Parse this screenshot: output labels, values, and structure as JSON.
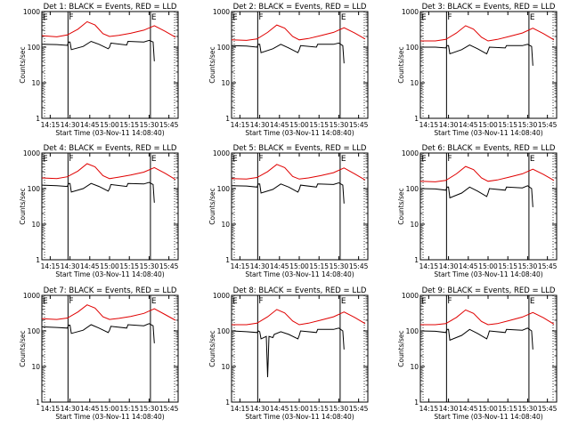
{
  "legend": {
    "title_suffix": "BLACK = Events, RED = LLD",
    "colors": {
      "events": "#000000",
      "lld": "#e00000"
    }
  },
  "axes": {
    "ylabel": "Counts/sec",
    "xlabel": "Start Time (03-Nov-11 14:08:40)",
    "x_ticks": [
      "14:15",
      "14:30",
      "14:45",
      "15:00",
      "15:15",
      "15:30",
      "15:45"
    ],
    "y_ticks": [
      "1",
      "10",
      "100",
      "1000"
    ]
  },
  "flags": {
    "left": "E",
    "mid": "F",
    "right": "E"
  },
  "chart_data": [
    {
      "type": "line",
      "title": "Det 1:",
      "xlim": [
        "14:08:40",
        "15:52:00"
      ],
      "ylim": [
        1,
        1000
      ],
      "yscale": "log",
      "series": [
        {
          "name": "Events",
          "x": [
            "14:08:40",
            "14:20",
            "14:28",
            "14:29",
            "14:30",
            "14:31",
            "14:40",
            "14:46",
            "14:52",
            "14:59",
            "15:00",
            "15:01",
            "15:13",
            "15:14",
            "15:26",
            "15:30",
            "15:33",
            "15:34"
          ],
          "values": [
            120,
            118,
            112,
            140,
            140,
            85,
            105,
            145,
            120,
            90,
            100,
            130,
            115,
            145,
            140,
            155,
            140,
            40
          ]
        },
        {
          "name": "LLD",
          "x": [
            "14:08:40",
            "14:20",
            "14:28",
            "14:36",
            "14:43",
            "14:49",
            "14:55",
            "15:00",
            "15:07",
            "15:16",
            "15:26",
            "15:34",
            "15:42",
            "15:50"
          ],
          "values": [
            210,
            195,
            220,
            320,
            520,
            420,
            240,
            200,
            215,
            245,
            300,
            400,
            280,
            190
          ]
        }
      ]
    },
    {
      "type": "line",
      "title": "Det 2:",
      "xlim": [
        "14:08:40",
        "15:52:00"
      ],
      "ylim": [
        1,
        1000
      ],
      "yscale": "log",
      "series": [
        {
          "name": "Events",
          "x": [
            "14:08:40",
            "14:20",
            "14:28",
            "14:29",
            "14:30",
            "14:31",
            "14:40",
            "14:46",
            "14:52",
            "14:59",
            "15:00",
            "15:01",
            "15:13",
            "15:14",
            "15:26",
            "15:30",
            "15:33",
            "15:34"
          ],
          "values": [
            110,
            108,
            100,
            120,
            120,
            70,
            90,
            120,
            95,
            70,
            85,
            110,
            100,
            120,
            120,
            130,
            110,
            35
          ]
        },
        {
          "name": "LLD",
          "x": [
            "14:08:40",
            "14:20",
            "14:28",
            "14:36",
            "14:43",
            "14:49",
            "14:55",
            "15:00",
            "15:07",
            "15:16",
            "15:26",
            "15:34",
            "15:42",
            "15:50"
          ],
          "values": [
            160,
            155,
            170,
            260,
            420,
            340,
            200,
            160,
            175,
            210,
            260,
            350,
            250,
            170
          ]
        }
      ]
    },
    {
      "type": "line",
      "title": "Det 3:",
      "xlim": [
        "14:08:40",
        "15:52:00"
      ],
      "ylim": [
        1,
        1000
      ],
      "yscale": "log",
      "series": [
        {
          "name": "Events",
          "x": [
            "14:08:40",
            "14:20",
            "14:28",
            "14:29",
            "14:30",
            "14:31",
            "14:40",
            "14:46",
            "14:52",
            "14:59",
            "15:00",
            "15:01",
            "15:13",
            "15:14",
            "15:26",
            "15:30",
            "15:33",
            "15:34"
          ],
          "values": [
            100,
            100,
            95,
            110,
            110,
            65,
            85,
            115,
            90,
            65,
            80,
            100,
            95,
            110,
            110,
            120,
            105,
            30
          ]
        },
        {
          "name": "LLD",
          "x": [
            "14:08:40",
            "14:20",
            "14:28",
            "14:36",
            "14:43",
            "14:49",
            "14:55",
            "15:00",
            "15:07",
            "15:16",
            "15:26",
            "15:34",
            "15:42",
            "15:50"
          ],
          "values": [
            150,
            150,
            165,
            250,
            400,
            320,
            190,
            150,
            165,
            200,
            250,
            340,
            240,
            160
          ]
        }
      ]
    },
    {
      "type": "line",
      "title": "Det 4:",
      "xlim": [
        "14:08:40",
        "15:52:00"
      ],
      "ylim": [
        1,
        1000
      ],
      "yscale": "log",
      "series": [
        {
          "name": "Events",
          "x": [
            "14:08:40",
            "14:20",
            "14:28",
            "14:29",
            "14:30",
            "14:31",
            "14:40",
            "14:46",
            "14:52",
            "14:59",
            "15:00",
            "15:01",
            "15:13",
            "15:14",
            "15:26",
            "15:30",
            "15:33",
            "15:34"
          ],
          "values": [
            125,
            120,
            115,
            140,
            140,
            80,
            100,
            140,
            115,
            85,
            100,
            130,
            115,
            140,
            135,
            150,
            130,
            40
          ]
        },
        {
          "name": "LLD",
          "x": [
            "14:08:40",
            "14:20",
            "14:28",
            "14:36",
            "14:43",
            "14:49",
            "14:55",
            "15:00",
            "15:07",
            "15:16",
            "15:26",
            "15:34",
            "15:42",
            "15:50"
          ],
          "values": [
            200,
            190,
            215,
            310,
            500,
            410,
            230,
            190,
            210,
            240,
            290,
            390,
            270,
            180
          ]
        }
      ]
    },
    {
      "type": "line",
      "title": "Det 5:",
      "xlim": [
        "14:08:40",
        "15:52:00"
      ],
      "ylim": [
        1,
        1000
      ],
      "yscale": "log",
      "series": [
        {
          "name": "Events",
          "x": [
            "14:08:40",
            "14:20",
            "14:28",
            "14:29",
            "14:30",
            "14:31",
            "14:40",
            "14:46",
            "14:52",
            "14:59",
            "15:00",
            "15:01",
            "15:13",
            "15:14",
            "15:26",
            "15:30",
            "15:33",
            "15:34"
          ],
          "values": [
            120,
            118,
            110,
            135,
            135,
            75,
            95,
            135,
            110,
            80,
            95,
            125,
            110,
            135,
            130,
            145,
            125,
            38
          ]
        },
        {
          "name": "LLD",
          "x": [
            "14:08:40",
            "14:20",
            "14:28",
            "14:36",
            "14:43",
            "14:49",
            "14:55",
            "15:00",
            "15:07",
            "15:16",
            "15:26",
            "15:34",
            "15:42",
            "15:50"
          ],
          "values": [
            190,
            185,
            205,
            300,
            480,
            390,
            220,
            185,
            200,
            230,
            280,
            380,
            260,
            175
          ]
        }
      ]
    },
    {
      "type": "line",
      "title": "Det 6:",
      "xlim": [
        "14:08:40",
        "15:52:00"
      ],
      "ylim": [
        1,
        1000
      ],
      "yscale": "log",
      "series": [
        {
          "name": "Events",
          "x": [
            "14:08:40",
            "14:20",
            "14:28",
            "14:29",
            "14:30",
            "14:31",
            "14:40",
            "14:46",
            "14:52",
            "14:59",
            "15:00",
            "15:01",
            "15:13",
            "15:14",
            "15:26",
            "15:30",
            "15:33",
            "15:34"
          ],
          "values": [
            100,
            98,
            90,
            110,
            110,
            55,
            75,
            110,
            85,
            60,
            75,
            100,
            90,
            110,
            105,
            120,
            100,
            30
          ]
        },
        {
          "name": "LLD",
          "x": [
            "14:08:40",
            "14:20",
            "14:28",
            "14:36",
            "14:43",
            "14:49",
            "14:55",
            "15:00",
            "15:07",
            "15:16",
            "15:26",
            "15:34",
            "15:42",
            "15:50"
          ],
          "values": [
            160,
            155,
            170,
            260,
            420,
            340,
            200,
            160,
            175,
            210,
            260,
            350,
            250,
            170
          ]
        }
      ]
    },
    {
      "type": "line",
      "title": "Det 7:",
      "xlim": [
        "14:08:40",
        "15:52:00"
      ],
      "ylim": [
        1,
        1000
      ],
      "yscale": "log",
      "series": [
        {
          "name": "Events",
          "x": [
            "14:08:40",
            "14:20",
            "14:28",
            "14:29",
            "14:30",
            "14:31",
            "14:40",
            "14:46",
            "14:52",
            "14:59",
            "15:00",
            "15:01",
            "15:13",
            "15:14",
            "15:26",
            "15:30",
            "15:33",
            "15:34"
          ],
          "values": [
            130,
            125,
            120,
            145,
            145,
            85,
            105,
            150,
            120,
            90,
            105,
            135,
            120,
            150,
            140,
            160,
            140,
            45
          ]
        },
        {
          "name": "LLD",
          "x": [
            "14:08:40",
            "14:20",
            "14:28",
            "14:36",
            "14:43",
            "14:49",
            "14:55",
            "15:00",
            "15:07",
            "15:16",
            "15:26",
            "15:34",
            "15:42",
            "15:50"
          ],
          "values": [
            220,
            210,
            230,
            340,
            540,
            440,
            250,
            210,
            225,
            255,
            310,
            420,
            290,
            200
          ]
        }
      ]
    },
    {
      "type": "line",
      "title": "Det 8:",
      "xlim": [
        "14:08:40",
        "15:52:00"
      ],
      "ylim": [
        1,
        1000
      ],
      "yscale": "log",
      "series": [
        {
          "name": "Events",
          "x": [
            "14:08:40",
            "14:20",
            "14:28",
            "14:29",
            "14:30",
            "14:31",
            "14:35",
            "14:36",
            "14:37",
            "14:40",
            "14:41",
            "14:46",
            "14:52",
            "14:59",
            "15:00",
            "15:01",
            "15:13",
            "15:14",
            "15:26",
            "15:30",
            "15:33",
            "15:34"
          ],
          "values": [
            100,
            95,
            90,
            100,
            95,
            60,
            70,
            5,
            70,
            65,
            80,
            95,
            80,
            60,
            75,
            100,
            90,
            110,
            110,
            120,
            100,
            30
          ]
        },
        {
          "name": "LLD",
          "x": [
            "14:08:40",
            "14:20",
            "14:28",
            "14:36",
            "14:43",
            "14:49",
            "14:55",
            "15:00",
            "15:07",
            "15:16",
            "15:26",
            "15:34",
            "15:42",
            "15:50"
          ],
          "values": [
            150,
            150,
            165,
            250,
            400,
            320,
            190,
            150,
            165,
            200,
            250,
            340,
            240,
            160
          ]
        }
      ]
    },
    {
      "type": "line",
      "title": "Det 9:",
      "xlim": [
        "14:08:40",
        "15:52:00"
      ],
      "ylim": [
        1,
        1000
      ],
      "yscale": "log",
      "series": [
        {
          "name": "Events",
          "x": [
            "14:08:40",
            "14:20",
            "14:28",
            "14:29",
            "14:30",
            "14:31",
            "14:40",
            "14:46",
            "14:52",
            "14:59",
            "15:00",
            "15:01",
            "15:13",
            "15:14",
            "15:26",
            "15:30",
            "15:33",
            "15:34"
          ],
          "values": [
            100,
            98,
            90,
            110,
            110,
            55,
            75,
            110,
            85,
            60,
            75,
            100,
            90,
            110,
            105,
            120,
            100,
            30
          ]
        },
        {
          "name": "LLD",
          "x": [
            "14:08:40",
            "14:20",
            "14:28",
            "14:36",
            "14:43",
            "14:49",
            "14:55",
            "15:00",
            "15:07",
            "15:16",
            "15:26",
            "15:34",
            "15:42",
            "15:50"
          ],
          "values": [
            150,
            150,
            160,
            240,
            390,
            310,
            185,
            150,
            160,
            195,
            245,
            330,
            235,
            155
          ]
        }
      ]
    }
  ]
}
